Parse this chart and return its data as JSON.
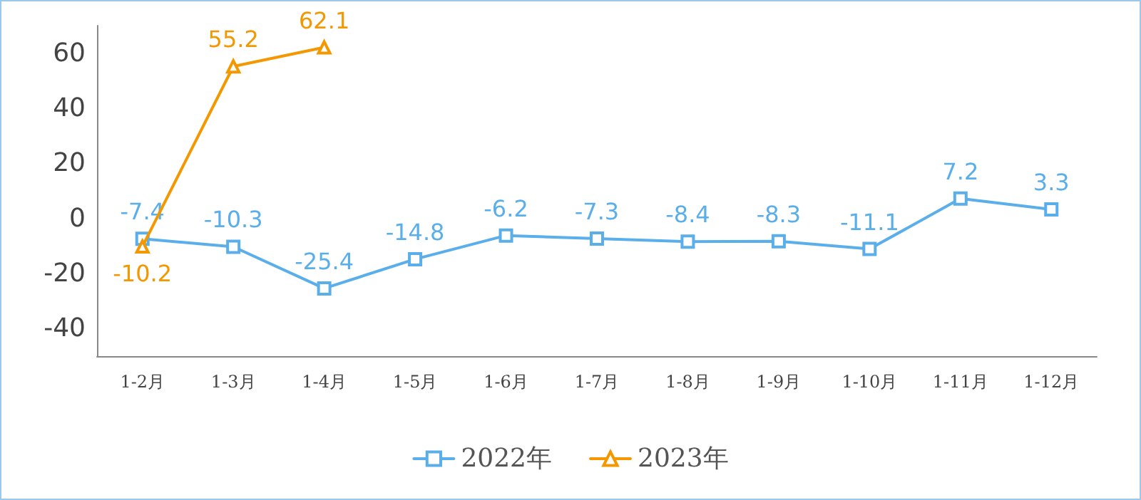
{
  "chart_data": {
    "type": "line",
    "categories": [
      "1-2月",
      "1-3月",
      "1-4月",
      "1-5月",
      "1-6月",
      "1-7月",
      "1-8月",
      "1-9月",
      "1-10月",
      "1-11月",
      "1-12月"
    ],
    "series": [
      {
        "name": "2022年",
        "color": "#5aaeea",
        "marker": "square",
        "values": [
          -7.4,
          -10.3,
          -25.4,
          -14.8,
          -6.2,
          -7.3,
          -8.4,
          -8.3,
          -11.1,
          7.2,
          3.3
        ]
      },
      {
        "name": "2023年",
        "color": "#f39800",
        "marker": "triangle",
        "values": [
          -10.2,
          55.2,
          62.1,
          null,
          null,
          null,
          null,
          null,
          null,
          null,
          null
        ]
      }
    ],
    "ylim": [
      -50,
      70
    ],
    "yticks": [
      -40,
      -20,
      0,
      20,
      40,
      60
    ],
    "grid": false,
    "legend": "bottom",
    "data_labels": true
  }
}
